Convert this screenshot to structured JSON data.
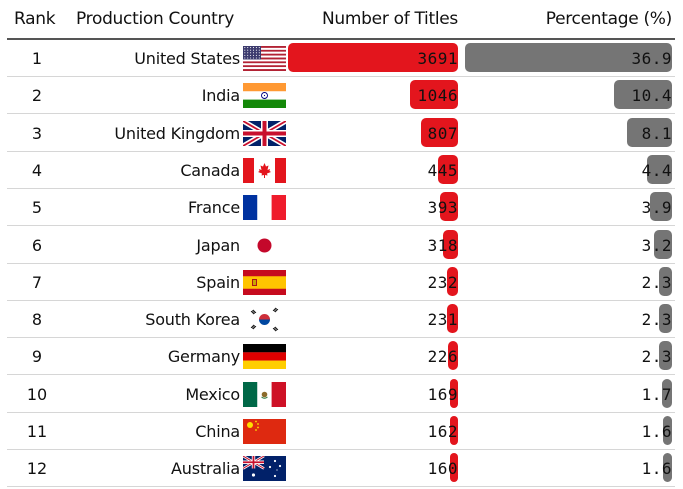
{
  "table": {
    "headers": {
      "rank": "Rank",
      "country": "Production Country",
      "titles": "Number of Titles",
      "percentage": "Percentage (%)"
    },
    "rows": [
      {
        "rank": "1",
        "country": "United States",
        "flag": "us-flag-icon",
        "titles": "3691",
        "percentage": "36.9"
      },
      {
        "rank": "2",
        "country": "India",
        "flag": "in-flag-icon",
        "titles": "1046",
        "percentage": "10.4"
      },
      {
        "rank": "3",
        "country": "United Kingdom",
        "flag": "gb-flag-icon",
        "titles": "807",
        "percentage": "8.1"
      },
      {
        "rank": "4",
        "country": "Canada",
        "flag": "ca-flag-icon",
        "titles": "445",
        "percentage": "4.4"
      },
      {
        "rank": "5",
        "country": "France",
        "flag": "fr-flag-icon",
        "titles": "393",
        "percentage": "3.9"
      },
      {
        "rank": "6",
        "country": "Japan",
        "flag": "jp-flag-icon",
        "titles": "318",
        "percentage": "3.2"
      },
      {
        "rank": "7",
        "country": "Spain",
        "flag": "es-flag-icon",
        "titles": "232",
        "percentage": "2.3"
      },
      {
        "rank": "8",
        "country": "South Korea",
        "flag": "kr-flag-icon",
        "titles": "231",
        "percentage": "2.3"
      },
      {
        "rank": "9",
        "country": "Germany",
        "flag": "de-flag-icon",
        "titles": "226",
        "percentage": "2.3"
      },
      {
        "rank": "10",
        "country": "Mexico",
        "flag": "mx-flag-icon",
        "titles": "169",
        "percentage": "1.7"
      },
      {
        "rank": "11",
        "country": "China",
        "flag": "cn-flag-icon",
        "titles": "162",
        "percentage": "1.6"
      },
      {
        "rank": "12",
        "country": "Australia",
        "flag": "au-flag-icon",
        "titles": "160",
        "percentage": "1.6"
      }
    ],
    "colors": {
      "titles_bar": "#e3151d",
      "percentage_bar": "#757575"
    }
  }
}
